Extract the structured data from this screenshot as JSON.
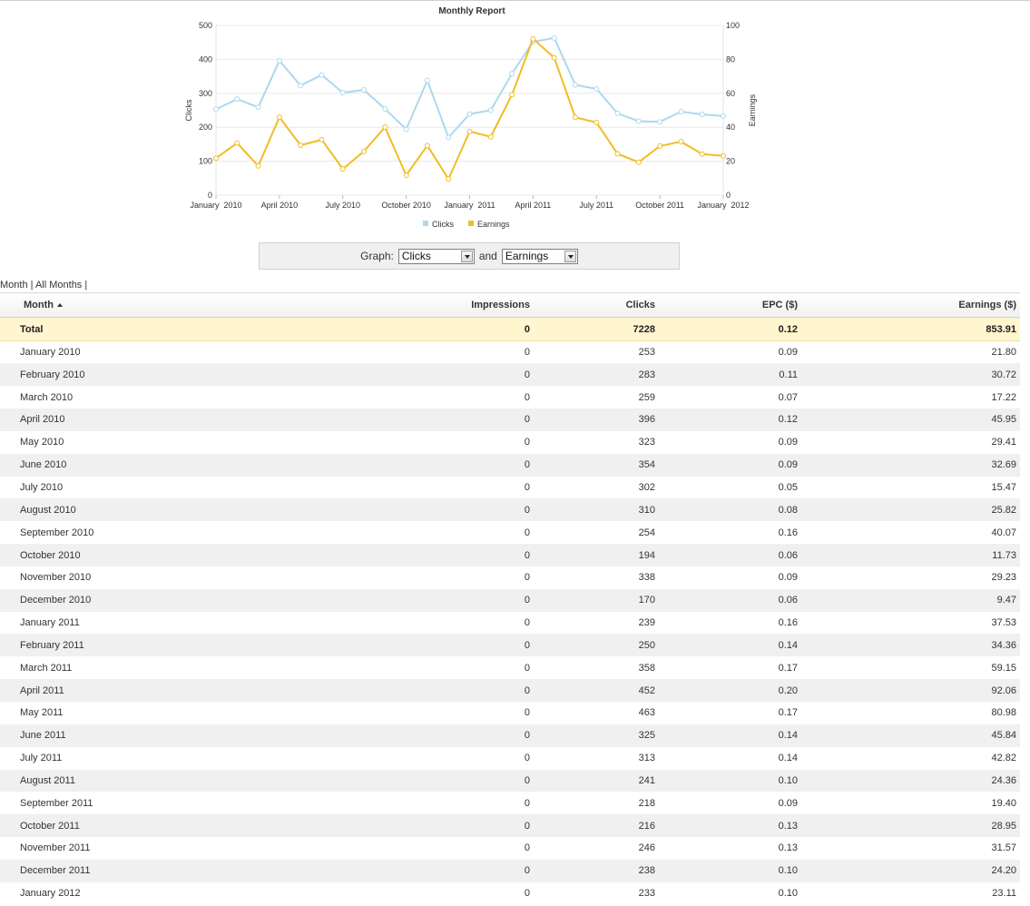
{
  "chart_data": {
    "type": "line",
    "title": "Monthly Report",
    "x": [
      "January 2010",
      "February 2010",
      "March 2010",
      "April 2010",
      "May 2010",
      "June 2010",
      "July 2010",
      "August 2010",
      "September 2010",
      "October 2010",
      "November 2010",
      "December 2010",
      "January 2011",
      "February 2011",
      "March 2011",
      "April 2011",
      "May 2011",
      "June 2011",
      "July 2011",
      "August 2011",
      "September 2011",
      "October 2011",
      "November 2011",
      "December 2011",
      "January 2012"
    ],
    "x_tick_labels": [
      "January  2010",
      "April 2010",
      "July 2010",
      "October 2010",
      "January  2011",
      "April 2011",
      "July 2011",
      "October 2011",
      "January  2012"
    ],
    "x_tick_indices": [
      0,
      3,
      6,
      9,
      12,
      15,
      18,
      21,
      24
    ],
    "ylabel": "Clicks",
    "y2label": "Earnings",
    "ylim": [
      0,
      500
    ],
    "y2lim": [
      0,
      100
    ],
    "y_ticks": [
      "0",
      "100",
      "200",
      "300",
      "400",
      "500"
    ],
    "y2_ticks": [
      "0",
      "20",
      "40",
      "60",
      "80",
      "100"
    ],
    "grid": true,
    "legend_position": "bottom",
    "series": [
      {
        "name": "Clicks",
        "axis": "left",
        "color": "#aed8ee",
        "values": [
          253,
          283,
          259,
          396,
          323,
          354,
          302,
          310,
          254,
          194,
          338,
          170,
          239,
          250,
          358,
          452,
          463,
          325,
          313,
          241,
          218,
          216,
          246,
          238,
          233
        ]
      },
      {
        "name": "Earnings",
        "axis": "right",
        "color": "#f0bd22",
        "values": [
          21.8,
          30.72,
          17.22,
          45.95,
          29.41,
          32.69,
          15.47,
          25.82,
          40.07,
          11.73,
          29.23,
          9.47,
          37.53,
          34.36,
          59.15,
          92.06,
          80.98,
          45.84,
          42.82,
          24.36,
          19.4,
          28.95,
          31.57,
          24.2,
          23.11
        ]
      }
    ]
  },
  "controls": {
    "graph_label": "Graph:",
    "and_label": "and",
    "select1": "Clicks",
    "select2": "Earnings"
  },
  "links": {
    "month": "Month",
    "sep1": " | ",
    "all_months": "All Months",
    "sep2": " |"
  },
  "table": {
    "headers": [
      "Month",
      "Impressions",
      "Clicks",
      "EPC ($)",
      "Earnings ($)"
    ],
    "total": [
      "Total",
      "0",
      "7228",
      "0.12",
      "853.91"
    ],
    "rows": [
      [
        "January 2010",
        "0",
        "253",
        "0.09",
        "21.80"
      ],
      [
        "February 2010",
        "0",
        "283",
        "0.11",
        "30.72"
      ],
      [
        "March 2010",
        "0",
        "259",
        "0.07",
        "17.22"
      ],
      [
        "April 2010",
        "0",
        "396",
        "0.12",
        "45.95"
      ],
      [
        "May 2010",
        "0",
        "323",
        "0.09",
        "29.41"
      ],
      [
        "June 2010",
        "0",
        "354",
        "0.09",
        "32.69"
      ],
      [
        "July 2010",
        "0",
        "302",
        "0.05",
        "15.47"
      ],
      [
        "August 2010",
        "0",
        "310",
        "0.08",
        "25.82"
      ],
      [
        "September 2010",
        "0",
        "254",
        "0.16",
        "40.07"
      ],
      [
        "October 2010",
        "0",
        "194",
        "0.06",
        "11.73"
      ],
      [
        "November 2010",
        "0",
        "338",
        "0.09",
        "29.23"
      ],
      [
        "December 2010",
        "0",
        "170",
        "0.06",
        "9.47"
      ],
      [
        "January 2011",
        "0",
        "239",
        "0.16",
        "37.53"
      ],
      [
        "February 2011",
        "0",
        "250",
        "0.14",
        "34.36"
      ],
      [
        "March 2011",
        "0",
        "358",
        "0.17",
        "59.15"
      ],
      [
        "April 2011",
        "0",
        "452",
        "0.20",
        "92.06"
      ],
      [
        "May 2011",
        "0",
        "463",
        "0.17",
        "80.98"
      ],
      [
        "June 2011",
        "0",
        "325",
        "0.14",
        "45.84"
      ],
      [
        "July 2011",
        "0",
        "313",
        "0.14",
        "42.82"
      ],
      [
        "August 2011",
        "0",
        "241",
        "0.10",
        "24.36"
      ],
      [
        "September 2011",
        "0",
        "218",
        "0.09",
        "19.40"
      ],
      [
        "October 2011",
        "0",
        "216",
        "0.13",
        "28.95"
      ],
      [
        "November 2011",
        "0",
        "246",
        "0.13",
        "31.57"
      ],
      [
        "December 2011",
        "0",
        "238",
        "0.10",
        "24.20"
      ],
      [
        "January 2012",
        "0",
        "233",
        "0.10",
        "23.11"
      ]
    ]
  }
}
